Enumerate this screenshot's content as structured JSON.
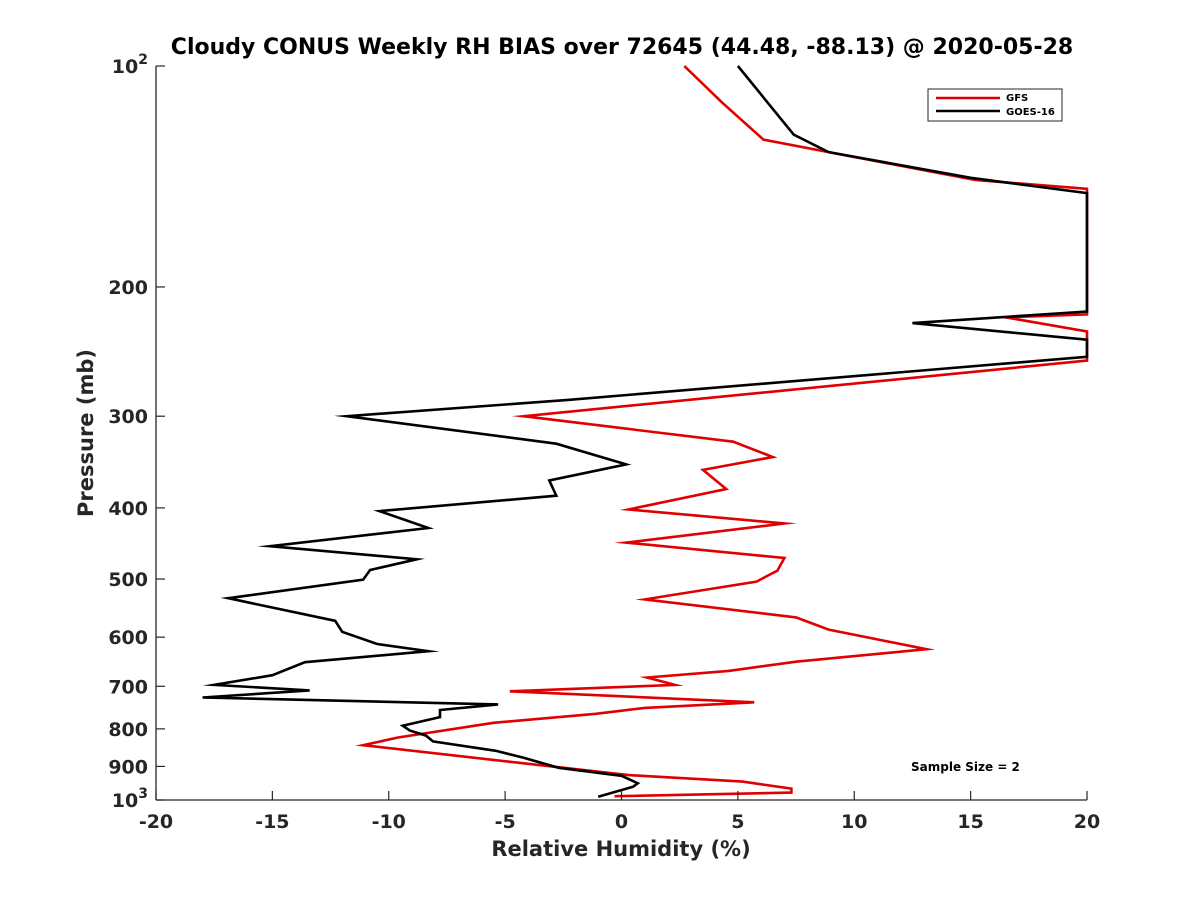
{
  "chart_data": {
    "type": "line",
    "title": "Cloudy CONUS Weekly RH BIAS over 72645 (44.48, -88.13) @ 2020-05-28",
    "xlabel": "Relative Humidity (%)",
    "ylabel": "Pressure (mb)",
    "xlim": [
      -20,
      20
    ],
    "ylim": [
      100,
      1000
    ],
    "y_scale": "log",
    "y_reversed": true,
    "x_ticks": [
      "-20",
      "-15",
      "-10",
      "-5",
      "0",
      "5",
      "10",
      "15",
      "20"
    ],
    "y_ticks": [
      {
        "value": 100,
        "base": "10",
        "exp": "2"
      },
      {
        "value": 200,
        "label": "200"
      },
      {
        "value": 300,
        "label": "300"
      },
      {
        "value": 400,
        "label": "400"
      },
      {
        "value": 500,
        "label": "500"
      },
      {
        "value": 600,
        "label": "600"
      },
      {
        "value": 700,
        "label": "700"
      },
      {
        "value": 800,
        "label": "800"
      },
      {
        "value": 900,
        "label": "900"
      },
      {
        "value": 1000,
        "base": "10",
        "exp": "3"
      }
    ],
    "grid": false,
    "legend_position": "top-right",
    "annotation": "Sample Size = 2",
    "series": [
      {
        "name": "GFS",
        "color": "#e00000",
        "points": [
          [
            2.7,
            100
          ],
          [
            4.3,
            112
          ],
          [
            6.1,
            126
          ],
          [
            15.2,
            143
          ],
          [
            20.0,
            147
          ],
          [
            20.0,
            218
          ],
          [
            16.5,
            220
          ],
          [
            20.0,
            230
          ],
          [
            20.0,
            252
          ],
          [
            -4.2,
            300
          ],
          [
            4.8,
            325
          ],
          [
            6.5,
            341
          ],
          [
            3.5,
            355
          ],
          [
            4.5,
            377
          ],
          [
            0.3,
            402
          ],
          [
            7.0,
            420
          ],
          [
            0.2,
            446
          ],
          [
            7.0,
            468
          ],
          [
            6.7,
            487
          ],
          [
            5.8,
            504
          ],
          [
            1.0,
            533
          ],
          [
            7.5,
            564
          ],
          [
            8.9,
            586
          ],
          [
            13.1,
            623
          ],
          [
            7.5,
            648
          ],
          [
            4.6,
            667
          ],
          [
            1.1,
            681
          ],
          [
            2.3,
            697
          ],
          [
            -4.8,
            711
          ],
          [
            5.7,
            736
          ],
          [
            1.0,
            749
          ],
          [
            -1.1,
            763
          ],
          [
            -5.5,
            785
          ],
          [
            -9.6,
            822
          ],
          [
            -11.1,
            842
          ],
          [
            0.3,
            925
          ],
          [
            5.2,
            944
          ],
          [
            7.3,
            965
          ],
          [
            7.3,
            977
          ],
          [
            -0.3,
            988
          ]
        ]
      },
      {
        "name": "GOES-16",
        "color": "#000000",
        "points": [
          [
            5.0,
            100
          ],
          [
            7.4,
            124
          ],
          [
            8.9,
            131
          ],
          [
            15.0,
            142
          ],
          [
            20.0,
            149
          ],
          [
            20.0,
            216
          ],
          [
            12.5,
            224
          ],
          [
            20.0,
            236
          ],
          [
            20.0,
            249
          ],
          [
            -2.3,
            285
          ],
          [
            -11.8,
            300
          ],
          [
            -2.8,
            327
          ],
          [
            0.2,
            349
          ],
          [
            -3.1,
            367
          ],
          [
            -2.8,
            385
          ],
          [
            -10.4,
            404
          ],
          [
            -8.3,
            426
          ],
          [
            -15.1,
            451
          ],
          [
            -8.8,
            470
          ],
          [
            -10.8,
            486
          ],
          [
            -11.1,
            501
          ],
          [
            -16.9,
            531
          ],
          [
            -12.3,
            570
          ],
          [
            -12.0,
            590
          ],
          [
            -10.5,
            613
          ],
          [
            -8.3,
            627
          ],
          [
            -13.6,
            649
          ],
          [
            -15.0,
            676
          ],
          [
            -17.5,
            697
          ],
          [
            -13.4,
            709
          ],
          [
            -18.0,
            725
          ],
          [
            -5.3,
            741
          ],
          [
            -7.8,
            754
          ],
          [
            -7.8,
            771
          ],
          [
            -9.4,
            792
          ],
          [
            -9.1,
            804
          ],
          [
            -8.4,
            817
          ],
          [
            -8.1,
            832
          ],
          [
            -5.4,
            857
          ],
          [
            -4.2,
            876
          ],
          [
            -2.7,
            904
          ],
          [
            0.0,
            927
          ],
          [
            0.7,
            949
          ],
          [
            0.5,
            959
          ],
          [
            -1.0,
            990
          ]
        ]
      }
    ]
  }
}
